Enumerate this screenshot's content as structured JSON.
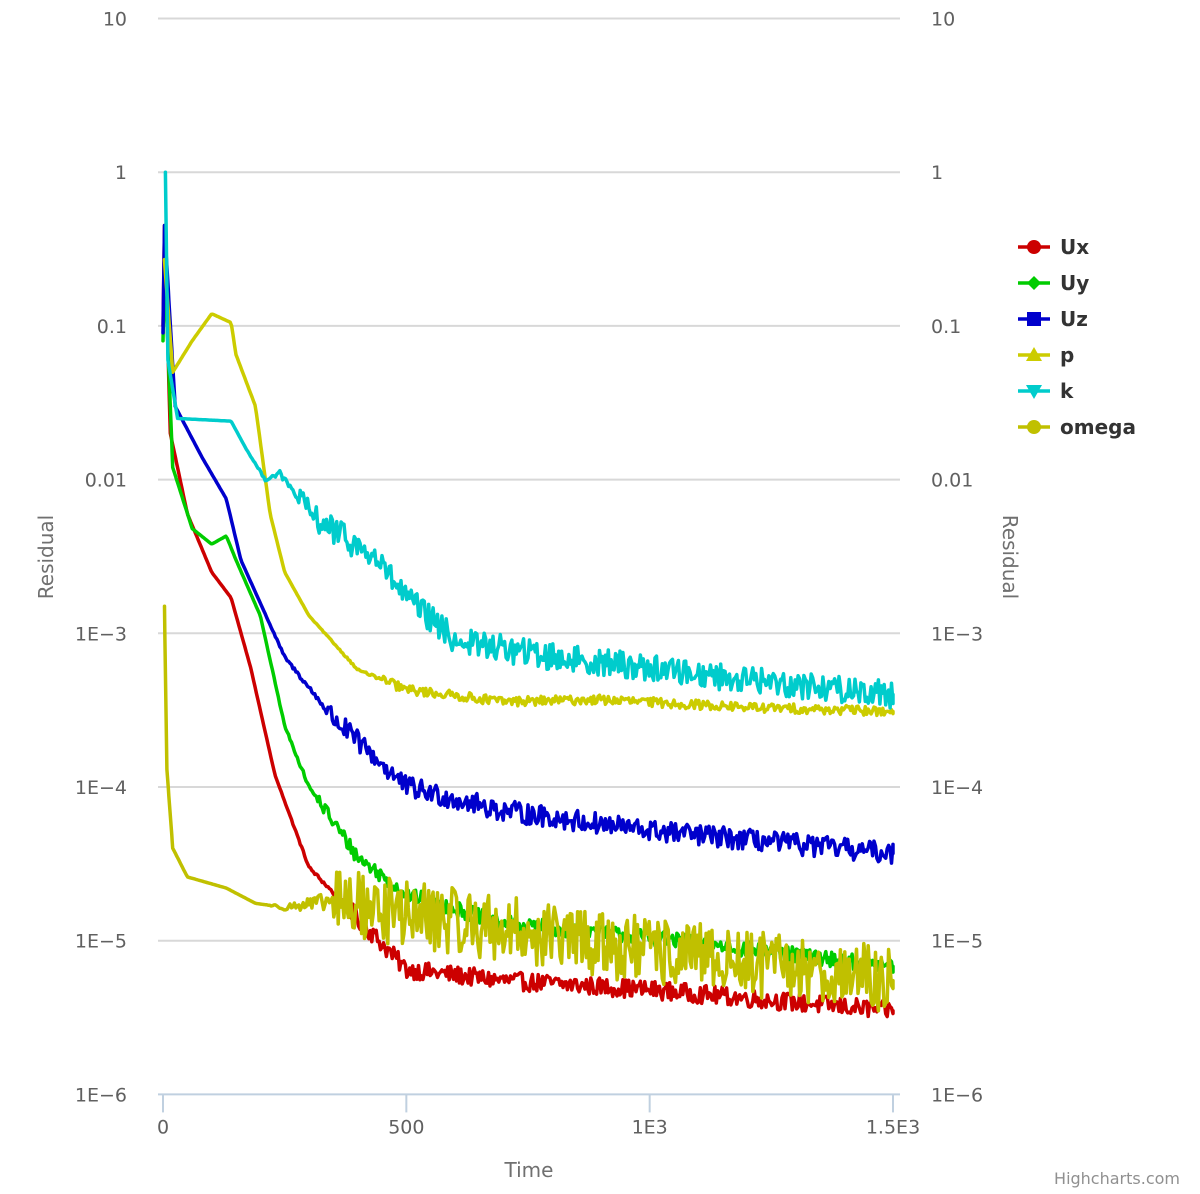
{
  "chart_data": {
    "type": "line",
    "title": "",
    "xlabel": "Time",
    "ylabel": "Residual",
    "ylabel_right": "Residual",
    "yscale": "log",
    "xlim": [
      0,
      1500
    ],
    "ylim": [
      1e-06,
      10
    ],
    "grid": true,
    "legend_position": "right",
    "x_ticks": [
      {
        "value": 0,
        "label": "0"
      },
      {
        "value": 500,
        "label": "500"
      },
      {
        "value": 1000,
        "label": "1E3"
      },
      {
        "value": 1500,
        "label": "1.5E3"
      }
    ],
    "y_ticks": [
      {
        "value": 10,
        "label": "10"
      },
      {
        "value": 1,
        "label": "1"
      },
      {
        "value": 0.1,
        "label": "0.1"
      },
      {
        "value": 0.01,
        "label": "0.01"
      },
      {
        "value": 0.001,
        "label": "1E−3"
      },
      {
        "value": 0.0001,
        "label": "1E−4"
      },
      {
        "value": 1e-05,
        "label": "1E−5"
      },
      {
        "value": 1e-06,
        "label": "1E−6"
      }
    ],
    "series": [
      {
        "name": "Ux",
        "color": "#cc0000",
        "marker": "circle",
        "noise": 0.06,
        "noise_from": 380,
        "x": [
          0,
          3,
          15,
          50,
          100,
          140,
          180,
          230,
          300,
          400,
          500,
          700,
          1000,
          1500
        ],
        "y": [
          0.1,
          0.45,
          0.02,
          0.006,
          0.0025,
          0.0017,
          0.0006,
          0.00012,
          3e-05,
          1.4e-05,
          6.5e-06,
          5.5e-06,
          4.8e-06,
          3.5e-06
        ]
      },
      {
        "name": "Uy",
        "color": "#00cc00",
        "marker": "diamond",
        "noise": 0.05,
        "noise_from": 320,
        "x": [
          0,
          3,
          20,
          60,
          100,
          130,
          150,
          200,
          250,
          300,
          400,
          500,
          700,
          1000,
          1500
        ],
        "y": [
          0.08,
          0.27,
          0.012,
          0.0048,
          0.0038,
          0.0043,
          0.003,
          0.0013,
          0.00025,
          0.0001,
          3.5e-05,
          2e-05,
          1.3e-05,
          1.05e-05,
          6.8e-06
        ]
      },
      {
        "name": "Uz",
        "color": "#0000cc",
        "marker": "square",
        "noise": 0.07,
        "noise_from": 330,
        "x": [
          0,
          3,
          25,
          80,
          130,
          160,
          250,
          350,
          500,
          700,
          1000,
          1500
        ],
        "y": [
          0.09,
          0.45,
          0.03,
          0.014,
          0.0075,
          0.003,
          0.0007,
          0.00028,
          0.0001,
          7e-05,
          5.2e-05,
          3.7e-05
        ]
      },
      {
        "name": "p",
        "color": "#cccc00",
        "marker": "triangle",
        "noise": 0.03,
        "noise_from": 450,
        "x": [
          3,
          20,
          60,
          100,
          140,
          150,
          190,
          220,
          250,
          300,
          400,
          500,
          700,
          900,
          1200,
          1500
        ],
        "y": [
          0.27,
          0.05,
          0.08,
          0.12,
          0.105,
          0.065,
          0.03,
          0.006,
          0.0025,
          0.0013,
          0.00058,
          0.00043,
          0.00036,
          0.00037,
          0.00033,
          0.00031
        ]
      },
      {
        "name": "k",
        "color": "#00cccc",
        "marker": "triangle-down",
        "noise": 0.09,
        "noise_from": 280,
        "x": [
          5,
          10,
          30,
          140,
          170,
          210,
          240,
          300,
          440,
          500,
          600,
          800,
          1000,
          1200,
          1500
        ],
        "y": [
          1,
          0.06,
          0.025,
          0.024,
          0.016,
          0.01,
          0.011,
          0.006,
          0.003,
          0.0017,
          0.0009,
          0.0007,
          0.0006,
          0.0005,
          0.0004
        ]
      },
      {
        "name": "omega",
        "color": "#c0c000",
        "marker": "circle",
        "noise": 0.22,
        "noise_from": 350,
        "x": [
          3,
          8,
          20,
          50,
          130,
          190,
          250,
          350,
          500,
          1000,
          1500
        ],
        "y": [
          0.0015,
          0.00013,
          4e-05,
          2.6e-05,
          2.2e-05,
          1.75e-05,
          1.65e-05,
          1.8e-05,
          1.5e-05,
          8.5e-06,
          5.5e-06
        ]
      }
    ]
  },
  "credits": "Highcharts.com"
}
